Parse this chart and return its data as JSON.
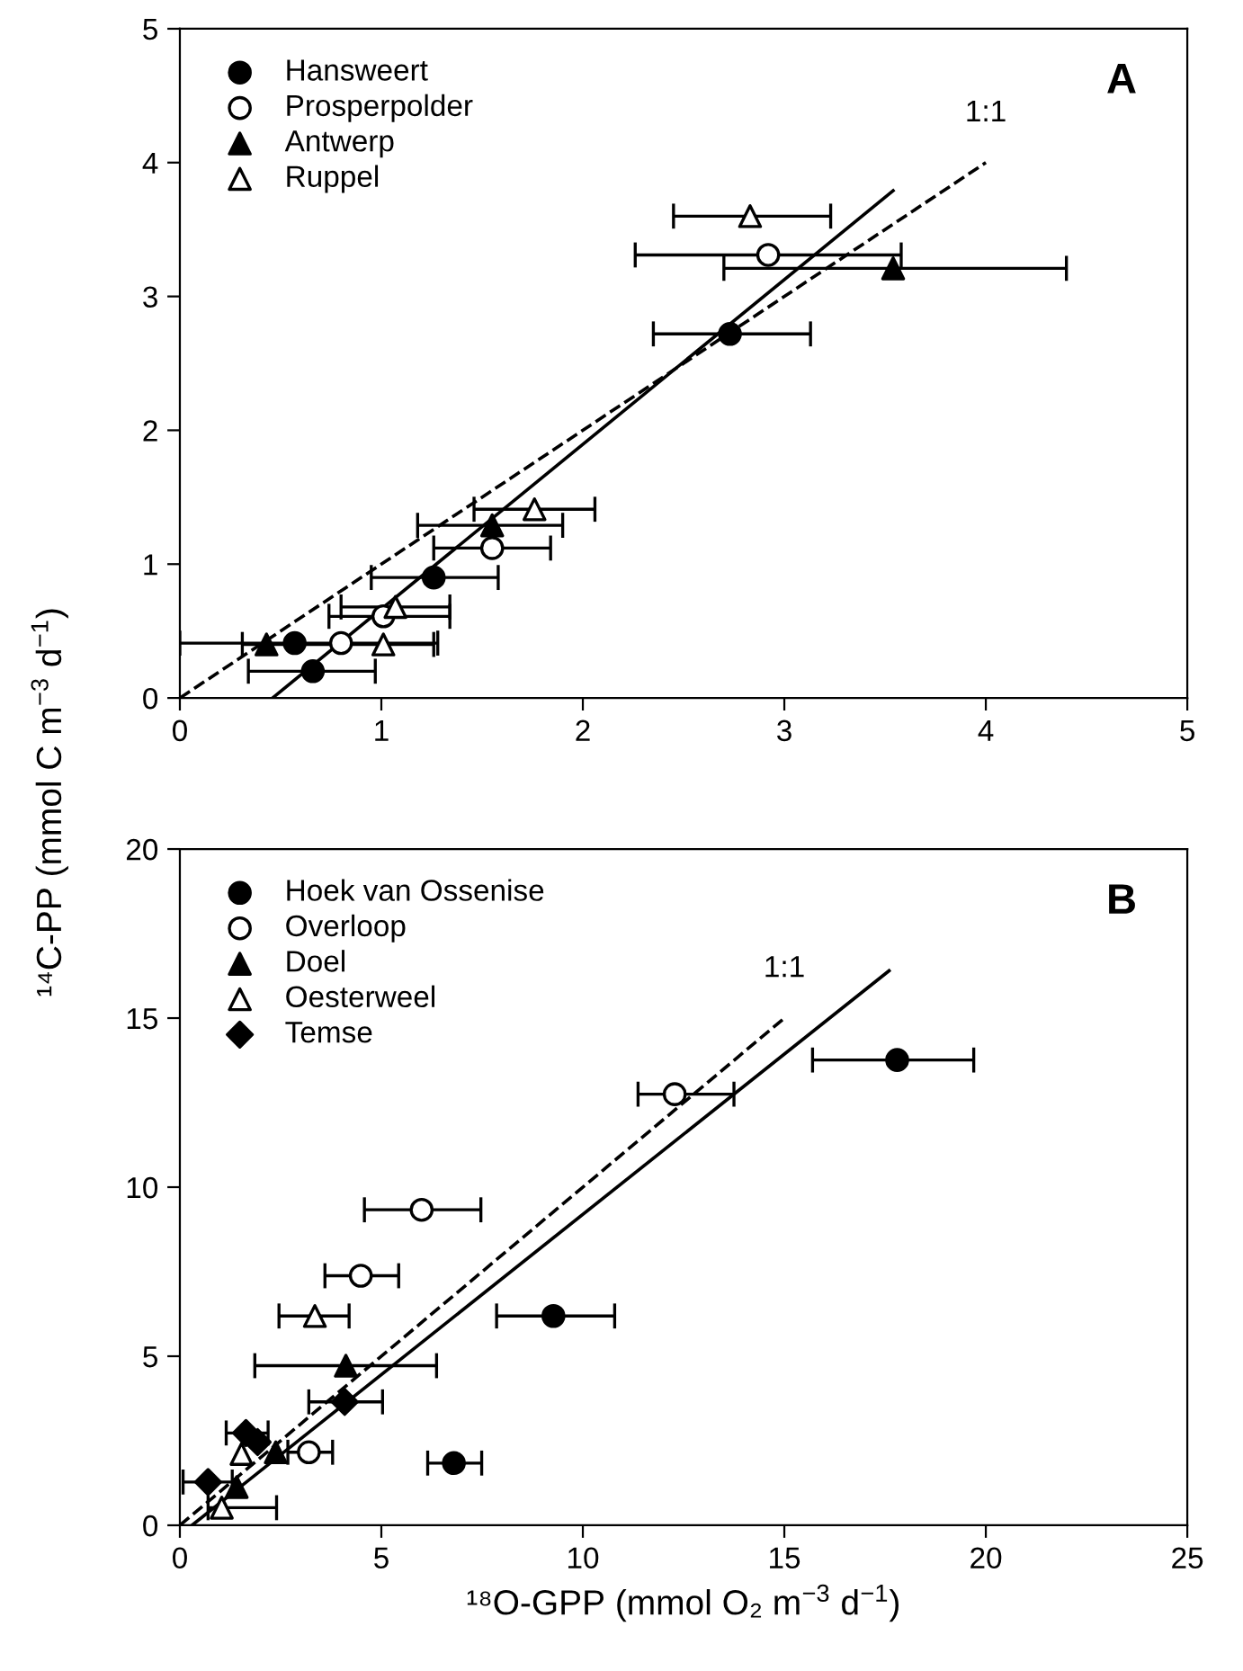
{
  "chart_data": [
    {
      "type": "scatter",
      "ylabel": "¹⁴C-PP (mmol C m$^{−3}$ d$^{−1}$)",
      "xlim": [
        0,
        5
      ],
      "ylim": [
        0,
        5
      ],
      "xticks": [
        0,
        1,
        2,
        3,
        4,
        5
      ],
      "yticks": [
        0,
        1,
        2,
        3,
        4,
        5
      ],
      "grid": false,
      "legend": "top left",
      "annotations": [
        "A",
        {
          "text": "1:1",
          "x": 4,
          "y": 4
        }
      ],
      "series": [
        {
          "name": "Hansweert",
          "color": "#000000",
          "marker": "circle",
          "x": [
            2.73,
            1.26,
            0.57,
            0.66
          ],
          "values": [
            2.72,
            0.9,
            0.41,
            0.2
          ],
          "xerrors": [
            [
              2.35,
              3.13
            ],
            [
              0.95,
              1.58
            ],
            [
              0.0,
              1.28
            ],
            [
              0.34,
              0.97
            ]
          ]
        },
        {
          "name": "Prosperpolder",
          "color": "#ffffff",
          "marker": "circle",
          "x": [
            2.92,
            1.55,
            1.01,
            0.8
          ],
          "values": [
            3.31,
            1.12,
            0.61,
            0.41
          ],
          "xerrors": [
            [
              2.26,
              3.58
            ],
            [
              1.26,
              1.84
            ],
            [
              0.74,
              1.34
            ],
            null
          ]
        },
        {
          "name": "Antwerp",
          "color": "#000000",
          "marker": "triangle",
          "x": [
            3.54,
            1.55,
            0.43
          ],
          "values": [
            3.21,
            1.29,
            0.4
          ],
          "xerrors": [
            [
              2.7,
              4.4
            ],
            [
              1.18,
              1.9
            ],
            [
              0.31,
              1.26
            ]
          ]
        },
        {
          "name": "Ruppel",
          "color": "#ffffff",
          "marker": "triangle",
          "x": [
            2.83,
            1.76,
            1.07,
            1.01
          ],
          "values": [
            3.6,
            1.41,
            0.68,
            0.4
          ],
          "xerrors": [
            [
              2.45,
              3.23
            ],
            [
              1.46,
              2.06
            ],
            [
              0.8,
              1.34
            ],
            null
          ]
        },
        {
          "type": "line",
          "color": "#000000",
          "line_style": "dashed",
          "x": [
            0,
            4
          ],
          "values": [
            0,
            4
          ]
        },
        {
          "type": "line",
          "color": "#000000",
          "line_style": "solid",
          "x": [
            0.46,
            3.54
          ],
          "values": [
            0,
            3.79
          ]
        }
      ]
    },
    {
      "type": "scatter",
      "xlabel": "¹⁸O-GPP (mmol O₂ m$^{−3}$ d$^{−1}$)",
      "xlim": [
        0,
        25
      ],
      "ylim": [
        0,
        20
      ],
      "xticks": [
        0,
        5,
        10,
        15,
        20,
        25
      ],
      "yticks": [
        0,
        5,
        10,
        15,
        20
      ],
      "grid": false,
      "legend": "top left",
      "annotations": [
        "B",
        {
          "text": "1:1",
          "x": 15,
          "y": 15
        }
      ],
      "series": [
        {
          "name": "Hoek van Ossenise",
          "color": "#000000",
          "marker": "circle",
          "x": [
            17.8,
            9.27,
            6.8
          ],
          "values": [
            13.76,
            6.19,
            1.84
          ],
          "xerrors": [
            [
              15.7,
              19.7
            ],
            [
              7.86,
              10.79
            ],
            [
              6.15,
              7.49
            ]
          ]
        },
        {
          "name": "Overloop",
          "color": "#ffffff",
          "marker": "circle",
          "x": [
            12.28,
            6.0,
            4.49,
            3.2
          ],
          "values": [
            12.75,
            9.33,
            7.38,
            2.16
          ],
          "xerrors": [
            [
              11.37,
              13.75
            ],
            [
              4.58,
              7.47
            ],
            [
              3.6,
              5.43
            ],
            [
              2.68,
              3.79
            ]
          ]
        },
        {
          "name": "Doel",
          "color": "#000000",
          "marker": "triangle",
          "x": [
            4.12,
            2.38,
            1.41
          ],
          "values": [
            4.72,
            2.16,
            1.13
          ],
          "xerrors": [
            [
              1.86,
              6.37
            ],
            null,
            null
          ]
        },
        {
          "name": "Oesterweel",
          "color": "#ffffff",
          "marker": "triangle",
          "x": [
            3.35,
            1.53,
            1.04
          ],
          "values": [
            6.19,
            2.11,
            0.52
          ],
          "xerrors": [
            [
              2.46,
              4.2
            ],
            null,
            [
              0.7,
              2.4
            ]
          ]
        },
        {
          "name": "Temse",
          "color": "#000000",
          "marker": "diamond",
          "x": [
            4.09,
            1.64,
            1.93,
            0.7
          ],
          "values": [
            3.65,
            2.73,
            2.46,
            1.28
          ],
          "xerrors": [
            [
              3.2,
              5.03
            ],
            [
              1.15,
              2.19
            ],
            null,
            [
              0.08,
              1.3
            ]
          ]
        },
        {
          "type": "line",
          "color": "#000000",
          "line_style": "dashed",
          "x": [
            0,
            15
          ],
          "values": [
            0,
            15
          ]
        },
        {
          "type": "line",
          "color": "#000000",
          "line_style": "solid",
          "x": [
            0.3,
            17.6
          ],
          "values": [
            0,
            16.4
          ]
        }
      ]
    }
  ]
}
